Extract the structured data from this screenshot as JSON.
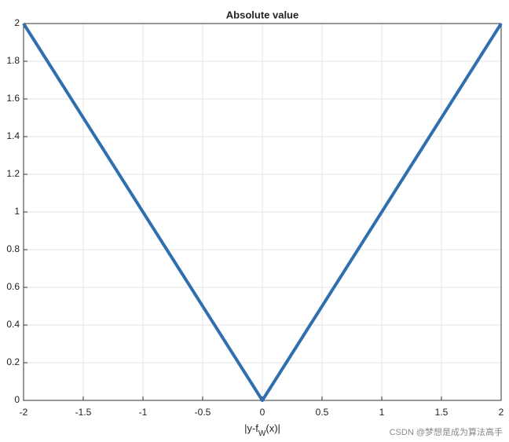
{
  "chart_data": {
    "type": "line",
    "title": "Absolute value",
    "xlabel": [
      "|y-f",
      "W",
      "(x)|"
    ],
    "x": [
      -2,
      0,
      2
    ],
    "series": [
      {
        "name": null,
        "color": "#2f6fad",
        "values": [
          2,
          0,
          2
        ]
      }
    ],
    "xlim": [
      -2,
      2
    ],
    "xticks": [
      -2,
      -1.5,
      -1,
      -0.5,
      0,
      0.5,
      1,
      1.5,
      2
    ],
    "ylim": [
      0,
      2
    ],
    "yticks": [
      0,
      0.2,
      0.4,
      0.6,
      0.8,
      1,
      1.2,
      1.4,
      1.6,
      1.8,
      2
    ],
    "grid": true
  },
  "watermark": "CSDN @梦想是成为算法高手"
}
